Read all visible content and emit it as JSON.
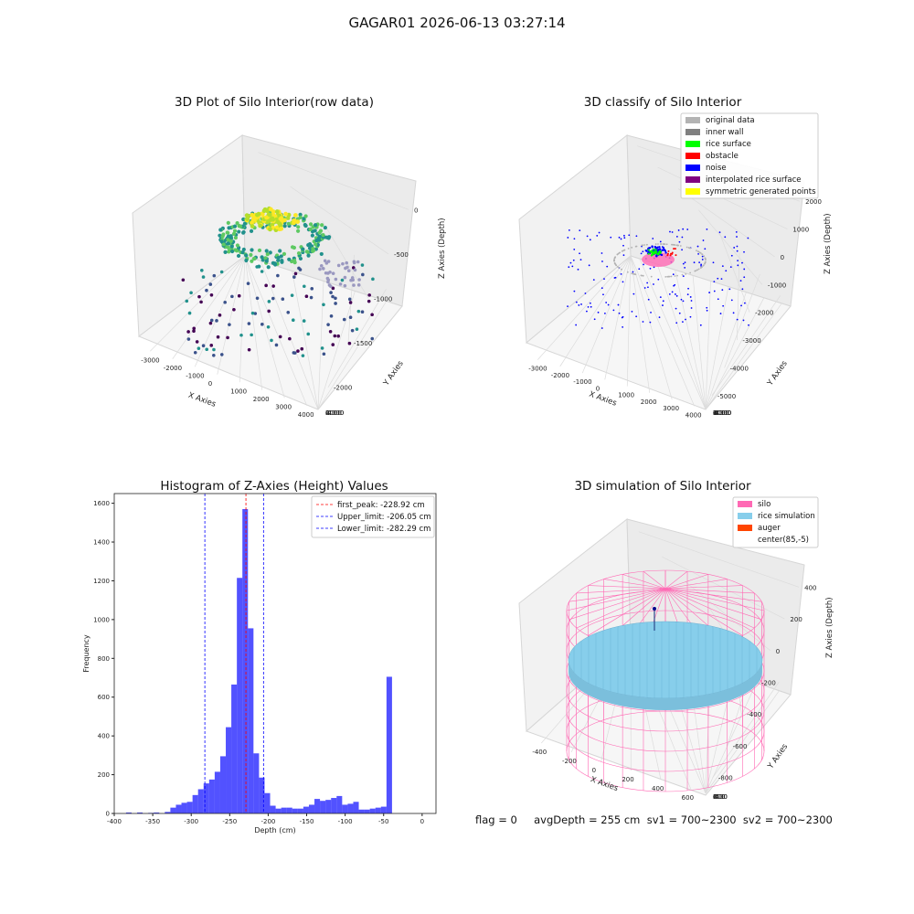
{
  "suptitle": "GAGAR01 2026-06-13 03:27:14",
  "panels": {
    "raw": {
      "title": "3D Plot of Silo Interior(row data)",
      "xlabel": "X Axies",
      "ylabel": "Y Axies",
      "zlabel": "Z Axies (Depth)",
      "xticks": [
        "-3000",
        "-2000",
        "-1000",
        "0",
        "1000",
        "2000",
        "3000",
        "4000"
      ],
      "yticks": [
        "4000",
        "2000",
        "0",
        "-2000",
        "-4000"
      ],
      "zticks": [
        "0",
        "-500",
        "-1000",
        "-1500",
        "-2000"
      ]
    },
    "classify": {
      "title": "3D classify of Silo Interior",
      "xlabel": "X Axies",
      "ylabel": "Y Axies",
      "zlabel": "Z Axies (Depth)",
      "xticks": [
        "-3000",
        "-2000",
        "-1000",
        "0",
        "1000",
        "2000",
        "3000",
        "4000"
      ],
      "yticks": [
        "4000",
        "3000",
        "2000",
        "1000",
        "0",
        "-1000",
        "-2000",
        "-3000",
        "-4000"
      ],
      "zticks": [
        "2000",
        "1000",
        "0",
        "-1000",
        "-2000",
        "-3000",
        "-4000",
        "-5000"
      ],
      "legend": [
        {
          "label": "original data",
          "color": "#b3b3b3"
        },
        {
          "label": "inner wall",
          "color": "#808080"
        },
        {
          "label": "rice surface",
          "color": "#00ff00"
        },
        {
          "label": "obstacle",
          "color": "#ff0000"
        },
        {
          "label": "noise",
          "color": "#0000ff"
        },
        {
          "label": "interpolated rice surface",
          "color": "#800080"
        },
        {
          "label": "symmetric generated points",
          "color": "#ffff00"
        }
      ]
    },
    "simulation": {
      "title": "3D simulation of Silo Interior",
      "xlabel": "X Axies",
      "ylabel": "Y Axies",
      "zlabel": "Z Axies (Depth)",
      "xticks": [
        "-400",
        "-200",
        "0",
        "200",
        "400",
        "600"
      ],
      "yticks": [
        "600",
        "400",
        "200",
        "0",
        "-200",
        "-400",
        "-600"
      ],
      "zticks": [
        "400",
        "200",
        "0",
        "-200",
        "-400",
        "-600",
        "-800"
      ],
      "legend": [
        {
          "label": "silo",
          "color": "#ff69b4"
        },
        {
          "label": "rice simulation",
          "color": "#87ceeb"
        },
        {
          "label": "auger",
          "color": "#ff4500"
        },
        {
          "label": "center(85,-5)",
          "color": ""
        }
      ]
    }
  },
  "footer": "flag = 0     avgDepth = 255 cm  sv1 = 700~2300  sv2 = 700~2300",
  "chart_data": [
    {
      "type": "bar",
      "title": "Histogram of Z-Axies (Height) Values",
      "xlabel": "Depth (cm)",
      "ylabel": "Frequency",
      "xlim": [
        -400,
        18
      ],
      "ylim": [
        0,
        1650
      ],
      "xticks": [
        -400,
        -350,
        -300,
        -250,
        -200,
        -150,
        -100,
        -50,
        0
      ],
      "yticks": [
        0,
        200,
        400,
        600,
        800,
        1000,
        1200,
        1400,
        1600
      ],
      "bin_width": 7.2,
      "bin_start": -384.7,
      "values": [
        5,
        0,
        5,
        0,
        3,
        5,
        0,
        8,
        30,
        45,
        55,
        60,
        95,
        125,
        155,
        175,
        215,
        295,
        445,
        665,
        1215,
        1570,
        955,
        310,
        185,
        105,
        40,
        25,
        30,
        30,
        25,
        25,
        35,
        45,
        75,
        65,
        70,
        80,
        90,
        45,
        50,
        60,
        20,
        20,
        25,
        30,
        35,
        705
      ],
      "bar_color": "#0000ff",
      "vlines": [
        {
          "x": -228.92,
          "label": "first_peak: -228.92 cm",
          "color": "#ff0000"
        },
        {
          "x": -206.05,
          "label": "Upper_limit: -206.05 cm",
          "color": "#0000ff"
        },
        {
          "x": -282.29,
          "label": "Lower_limit: -282.29 cm",
          "color": "#0000ff"
        }
      ],
      "legend_position": "top-right"
    }
  ]
}
